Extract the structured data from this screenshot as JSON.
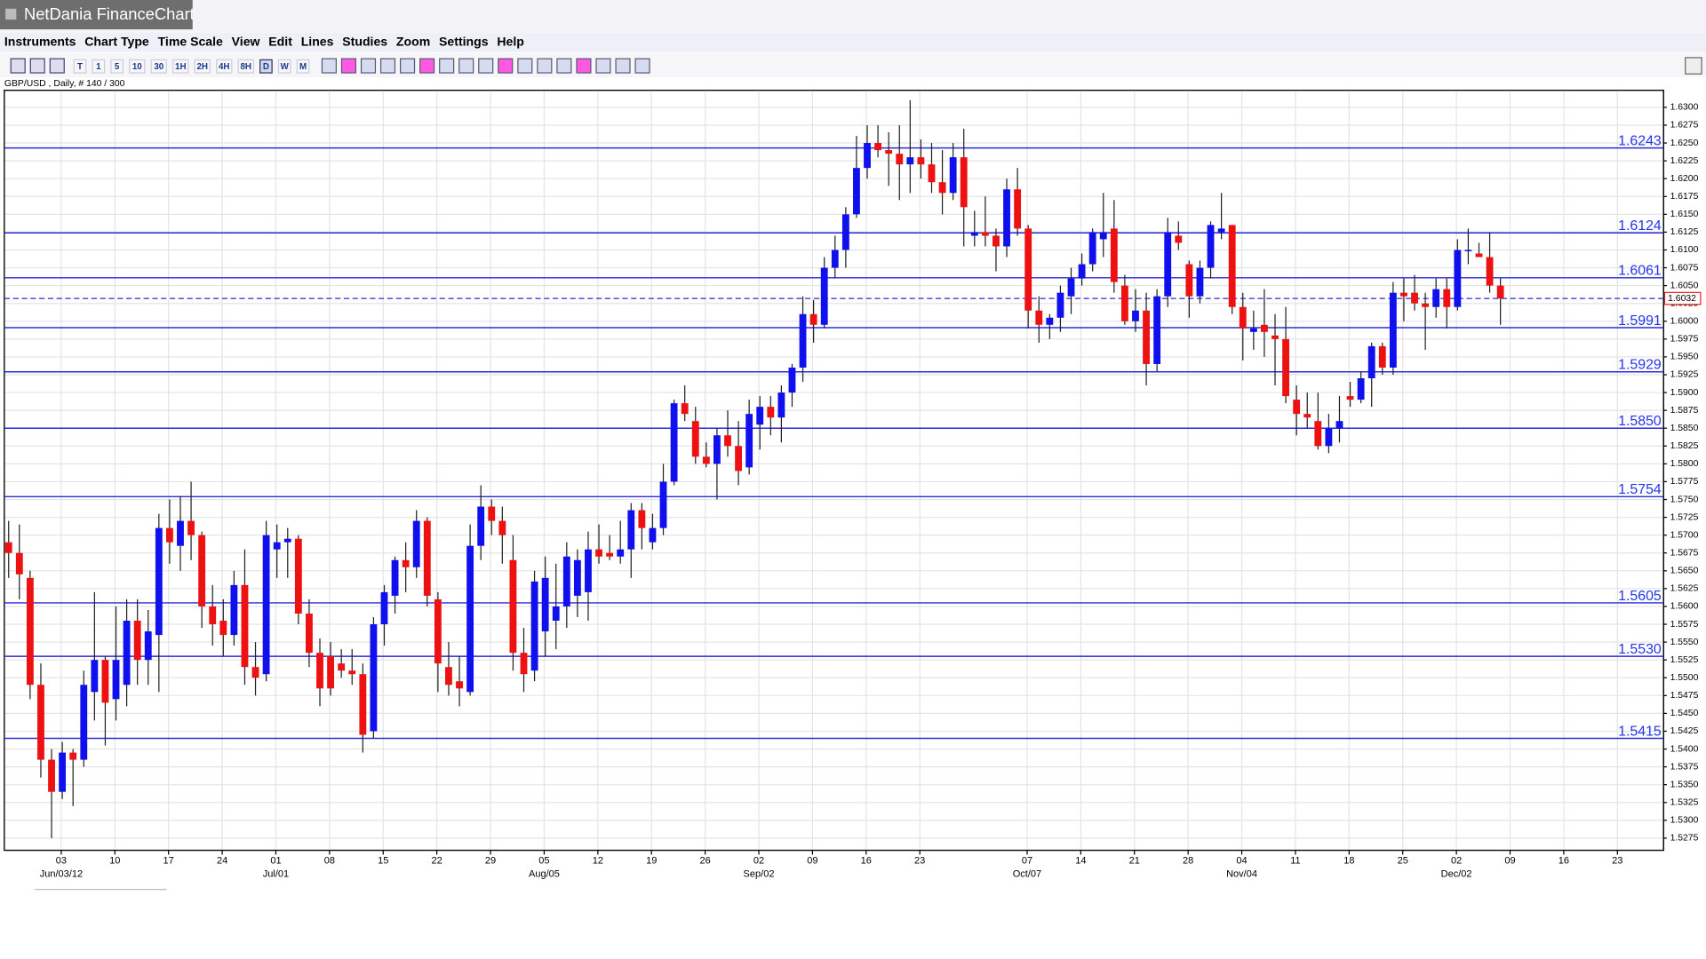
{
  "window_title": "NetDania FinanceChart",
  "menu": [
    "Instruments",
    "Chart Type",
    "Time Scale",
    "View",
    "Edit",
    "Lines",
    "Studies",
    "Zoom",
    "Settings",
    "Help"
  ],
  "toolbar": {
    "intervals": [
      "T",
      "1",
      "5",
      "10",
      "30",
      "1H",
      "2H",
      "4H",
      "8H",
      "D",
      "W",
      "M"
    ]
  },
  "chart_data": {
    "type": "candlestick",
    "title": "GBP/USD , Daily, # 140 / 300",
    "up_color": "#1010ee",
    "down_color": "#ee1111",
    "grid": true,
    "xlim": [
      -0.4,
      154.2
    ],
    "ylim": [
      1.5258,
      1.6324
    ],
    "open": [
      1.569,
      1.5675,
      1.564,
      1.549,
      1.5385,
      1.534,
      1.5395,
      1.5385,
      1.548,
      1.5525,
      1.547,
      1.549,
      1.558,
      1.5525,
      1.556,
      1.571,
      1.5685,
      1.572,
      1.57,
      1.56,
      1.558,
      1.556,
      1.563,
      1.5515,
      1.5505,
      1.568,
      1.569,
      1.5695,
      1.559,
      1.5535,
      1.553,
      1.552,
      1.551,
      1.5505,
      1.5425,
      1.5575,
      1.5615,
      1.5665,
      1.5655,
      1.572,
      1.561,
      1.5515,
      1.5495,
      1.548,
      1.5685,
      1.574,
      1.572,
      1.5665,
      1.5535,
      1.551,
      1.5565,
      1.558,
      1.56,
      1.5615,
      1.562,
      1.568,
      1.5675,
      1.567,
      1.568,
      1.5735,
      1.569,
      1.571,
      1.5775,
      1.5885,
      1.586,
      1.581,
      1.58,
      1.584,
      1.5825,
      1.5795,
      1.5855,
      1.588,
      1.5865,
      1.59,
      1.5935,
      1.601,
      1.5995,
      1.6075,
      1.61,
      1.615,
      1.6215,
      1.625,
      1.624,
      1.6235,
      1.622,
      1.623,
      1.622,
      1.6195,
      1.618,
      1.623,
      1.612,
      1.6125,
      1.612,
      1.6105,
      1.6185,
      1.613,
      1.6015,
      1.5995,
      1.6005,
      1.6035,
      1.606,
      1.608,
      1.6115,
      1.613,
      1.605,
      1.6,
      1.6015,
      1.594,
      1.6035,
      1.612,
      1.608,
      1.6035,
      1.6075,
      1.6125,
      1.6135,
      1.602,
      1.5985,
      1.5995,
      1.598,
      1.5975,
      1.589,
      1.587,
      1.586,
      1.5825,
      1.585,
      1.5895,
      1.589,
      1.592,
      1.5965,
      1.5935,
      1.604,
      1.604,
      1.6025,
      1.602,
      1.6045,
      1.602,
      1.61,
      1.6095,
      1.609,
      1.605
    ],
    "high": [
      1.572,
      1.5715,
      1.565,
      1.552,
      1.54,
      1.541,
      1.54,
      1.551,
      1.562,
      1.553,
      1.56,
      1.561,
      1.561,
      1.5595,
      1.573,
      1.575,
      1.5755,
      1.5775,
      1.5705,
      1.563,
      1.561,
      1.565,
      1.568,
      1.555,
      1.572,
      1.5715,
      1.571,
      1.57,
      1.561,
      1.5555,
      1.555,
      1.554,
      1.554,
      1.552,
      1.5585,
      1.563,
      1.567,
      1.569,
      1.5735,
      1.5725,
      1.562,
      1.555,
      1.553,
      1.5715,
      1.577,
      1.575,
      1.574,
      1.57,
      1.557,
      1.565,
      1.567,
      1.566,
      1.569,
      1.568,
      1.5705,
      1.5715,
      1.57,
      1.572,
      1.5745,
      1.5745,
      1.573,
      1.58,
      1.589,
      1.591,
      1.588,
      1.583,
      1.585,
      1.5875,
      1.586,
      1.589,
      1.5895,
      1.5895,
      1.591,
      1.594,
      1.6035,
      1.603,
      1.609,
      1.612,
      1.616,
      1.626,
      1.6275,
      1.6275,
      1.6265,
      1.6275,
      1.631,
      1.6255,
      1.625,
      1.624,
      1.625,
      1.627,
      1.6155,
      1.6175,
      1.613,
      1.62,
      1.6215,
      1.6135,
      1.6035,
      1.601,
      1.605,
      1.6075,
      1.6095,
      1.613,
      1.618,
      1.617,
      1.6065,
      1.6045,
      1.604,
      1.6045,
      1.6145,
      1.614,
      1.6085,
      1.6085,
      1.614,
      1.618,
      1.6135,
      1.604,
      1.6015,
      1.6045,
      1.601,
      1.602,
      1.591,
      1.59,
      1.59,
      1.587,
      1.5895,
      1.5915,
      1.593,
      1.597,
      1.597,
      1.6055,
      1.606,
      1.6065,
      1.604,
      1.606,
      1.606,
      1.6115,
      1.613,
      1.611,
      1.6125,
      1.606
    ],
    "low": [
      1.564,
      1.561,
      1.547,
      1.536,
      1.5275,
      1.533,
      1.532,
      1.5375,
      1.544,
      1.5405,
      1.544,
      1.546,
      1.549,
      1.549,
      1.548,
      1.566,
      1.565,
      1.5665,
      1.557,
      1.5545,
      1.553,
      1.5545,
      1.549,
      1.5475,
      1.5495,
      1.564,
      1.564,
      1.5575,
      1.5515,
      1.546,
      1.5475,
      1.55,
      1.549,
      1.5395,
      1.5415,
      1.5545,
      1.559,
      1.562,
      1.564,
      1.56,
      1.548,
      1.5475,
      1.546,
      1.5475,
      1.5665,
      1.57,
      1.566,
      1.551,
      1.548,
      1.5495,
      1.553,
      1.554,
      1.557,
      1.5585,
      1.558,
      1.566,
      1.5665,
      1.566,
      1.564,
      1.568,
      1.568,
      1.57,
      1.577,
      1.586,
      1.58,
      1.5795,
      1.575,
      1.581,
      1.577,
      1.5785,
      1.582,
      1.584,
      1.583,
      1.588,
      1.5915,
      1.597,
      1.599,
      1.606,
      1.6075,
      1.6145,
      1.62,
      1.623,
      1.619,
      1.617,
      1.618,
      1.62,
      1.618,
      1.615,
      1.617,
      1.6105,
      1.6105,
      1.6105,
      1.607,
      1.609,
      1.612,
      1.599,
      1.597,
      1.5975,
      1.5985,
      1.601,
      1.605,
      1.607,
      1.609,
      1.604,
      1.5995,
      1.5985,
      1.591,
      1.593,
      1.602,
      1.61,
      1.6005,
      1.6025,
      1.606,
      1.6115,
      1.601,
      1.5945,
      1.596,
      1.595,
      1.591,
      1.5885,
      1.584,
      1.585,
      1.582,
      1.5815,
      1.583,
      1.588,
      1.5885,
      1.588,
      1.5925,
      1.5925,
      1.6,
      1.6015,
      1.596,
      1.6005,
      1.599,
      1.6015,
      1.608,
      1.609,
      1.604,
      1.5995
    ],
    "close": [
      1.5675,
      1.5645,
      1.549,
      1.5385,
      1.534,
      1.5395,
      1.5385,
      1.549,
      1.5525,
      1.5465,
      1.5525,
      1.558,
      1.5525,
      1.5565,
      1.571,
      1.569,
      1.572,
      1.57,
      1.56,
      1.5575,
      1.556,
      1.563,
      1.5515,
      1.55,
      1.57,
      1.569,
      1.5695,
      1.559,
      1.5535,
      1.5485,
      1.5485,
      1.551,
      1.5505,
      1.542,
      1.5575,
      1.562,
      1.5665,
      1.5655,
      1.572,
      1.5615,
      1.552,
      1.549,
      1.5485,
      1.5685,
      1.574,
      1.572,
      1.57,
      1.5535,
      1.5505,
      1.5635,
      1.564,
      1.56,
      1.567,
      1.5665,
      1.568,
      1.567,
      1.567,
      1.568,
      1.5735,
      1.571,
      1.571,
      1.5775,
      1.5885,
      1.587,
      1.581,
      1.58,
      1.584,
      1.5825,
      1.579,
      1.587,
      1.588,
      1.5865,
      1.59,
      1.5935,
      1.601,
      1.5995,
      1.6075,
      1.61,
      1.615,
      1.6215,
      1.625,
      1.624,
      1.6235,
      1.622,
      1.623,
      1.622,
      1.6195,
      1.618,
      1.623,
      1.616,
      1.6125,
      1.612,
      1.6105,
      1.6185,
      1.613,
      1.6015,
      1.5995,
      1.6005,
      1.604,
      1.606,
      1.608,
      1.6125,
      1.6125,
      1.6055,
      1.6,
      1.6015,
      1.594,
      1.6035,
      1.6125,
      1.611,
      1.6035,
      1.6075,
      1.6135,
      1.613,
      1.602,
      1.599,
      1.599,
      1.5985,
      1.5975,
      1.5895,
      1.587,
      1.5865,
      1.5825,
      1.585,
      1.586,
      1.589,
      1.592,
      1.5965,
      1.5935,
      1.604,
      1.6035,
      1.6025,
      1.602,
      1.6045,
      1.602,
      1.61,
      1.61,
      1.609,
      1.605,
      1.6032
    ],
    "levels": [
      {
        "value": 1.6243,
        "label": "1.6243"
      },
      {
        "value": 1.6124,
        "label": "1.6124"
      },
      {
        "value": 1.6061,
        "label": "1.6061"
      },
      {
        "value": 1.5991,
        "label": "1.5991"
      },
      {
        "value": 1.5929,
        "label": "1.5929"
      },
      {
        "value": 1.585,
        "label": "1.5850"
      },
      {
        "value": 1.5754,
        "label": "1.5754"
      },
      {
        "value": 1.5605,
        "label": "1.5605"
      },
      {
        "value": 1.553,
        "label": "1.5530"
      },
      {
        "value": 1.5415,
        "label": "1.5415"
      }
    ],
    "last_price": {
      "value": 1.6032,
      "label": "1.6032"
    },
    "yticks": [
      {
        "value": 1.5275,
        "label": "1.5275"
      },
      {
        "value": 1.53,
        "label": "1.5300"
      },
      {
        "value": 1.5325,
        "label": "1.5325"
      },
      {
        "value": 1.535,
        "label": "1.5350"
      },
      {
        "value": 1.5375,
        "label": "1.5375"
      },
      {
        "value": 1.54,
        "label": "1.5400"
      },
      {
        "value": 1.5425,
        "label": "1.5425"
      },
      {
        "value": 1.545,
        "label": "1.5450"
      },
      {
        "value": 1.5475,
        "label": "1.5475"
      },
      {
        "value": 1.55,
        "label": "1.5500"
      },
      {
        "value": 1.5525,
        "label": "1.5525"
      },
      {
        "value": 1.555,
        "label": "1.5550"
      },
      {
        "value": 1.5575,
        "label": "1.5575"
      },
      {
        "value": 1.56,
        "label": "1.5600"
      },
      {
        "value": 1.5625,
        "label": "1.5625"
      },
      {
        "value": 1.565,
        "label": "1.5650"
      },
      {
        "value": 1.5675,
        "label": "1.5675"
      },
      {
        "value": 1.57,
        "label": "1.5700"
      },
      {
        "value": 1.5725,
        "label": "1.5725"
      },
      {
        "value": 1.575,
        "label": "1.5750"
      },
      {
        "value": 1.5775,
        "label": "1.5775"
      },
      {
        "value": 1.58,
        "label": "1.5800"
      },
      {
        "value": 1.5825,
        "label": "1.5825"
      },
      {
        "value": 1.585,
        "label": "1.5850"
      },
      {
        "value": 1.5875,
        "label": "1.5875"
      },
      {
        "value": 1.59,
        "label": "1.5900"
      },
      {
        "value": 1.5925,
        "label": "1.5925"
      },
      {
        "value": 1.595,
        "label": "1.5950"
      },
      {
        "value": 1.5975,
        "label": "1.5975"
      },
      {
        "value": 1.6,
        "label": "1.6000"
      },
      {
        "value": 1.6025,
        "label": "1.6025"
      },
      {
        "value": 1.605,
        "label": "1.6050"
      },
      {
        "value": 1.6075,
        "label": "1.6075"
      },
      {
        "value": 1.61,
        "label": "1.6100"
      },
      {
        "value": 1.6125,
        "label": "1.6125"
      },
      {
        "value": 1.615,
        "label": "1.6150"
      },
      {
        "value": 1.6175,
        "label": "1.6175"
      },
      {
        "value": 1.62,
        "label": "1.6200"
      },
      {
        "value": 1.6225,
        "label": "1.6225"
      },
      {
        "value": 1.625,
        "label": "1.6250"
      },
      {
        "value": 1.6275,
        "label": "1.6275"
      },
      {
        "value": 1.63,
        "label": "1.6300"
      }
    ],
    "xticks": [
      {
        "value": 5,
        "label": "03",
        "sublabel": "Jun/03/12"
      },
      {
        "value": 10,
        "label": "10"
      },
      {
        "value": 15,
        "label": "17"
      },
      {
        "value": 20,
        "label": "24"
      },
      {
        "value": 25,
        "label": "01",
        "sublabel": "Jul/01"
      },
      {
        "value": 30,
        "label": "08"
      },
      {
        "value": 35,
        "label": "15"
      },
      {
        "value": 40,
        "label": "22"
      },
      {
        "value": 45,
        "label": "29"
      },
      {
        "value": 50,
        "label": "05",
        "sublabel": "Aug/05"
      },
      {
        "value": 55,
        "label": "12"
      },
      {
        "value": 60,
        "label": "19"
      },
      {
        "value": 65,
        "label": "26"
      },
      {
        "value": 70,
        "label": "02",
        "sublabel": "Sep/02"
      },
      {
        "value": 75,
        "label": "09"
      },
      {
        "value": 80,
        "label": "16"
      },
      {
        "value": 85,
        "label": "23"
      },
      {
        "value": 95,
        "label": "07",
        "sublabel": "Oct/07"
      },
      {
        "value": 100,
        "label": "14"
      },
      {
        "value": 105,
        "label": "21"
      },
      {
        "value": 110,
        "label": "28"
      },
      {
        "value": 115,
        "label": "04",
        "sublabel": "Nov/04"
      },
      {
        "value": 120,
        "label": "11"
      },
      {
        "value": 125,
        "label": "18"
      },
      {
        "value": 130,
        "label": "25"
      },
      {
        "value": 135,
        "label": "02",
        "sublabel": "Dec/02"
      },
      {
        "value": 140,
        "label": "09"
      },
      {
        "value": 145,
        "label": "16"
      },
      {
        "value": 150,
        "label": "23"
      }
    ]
  }
}
